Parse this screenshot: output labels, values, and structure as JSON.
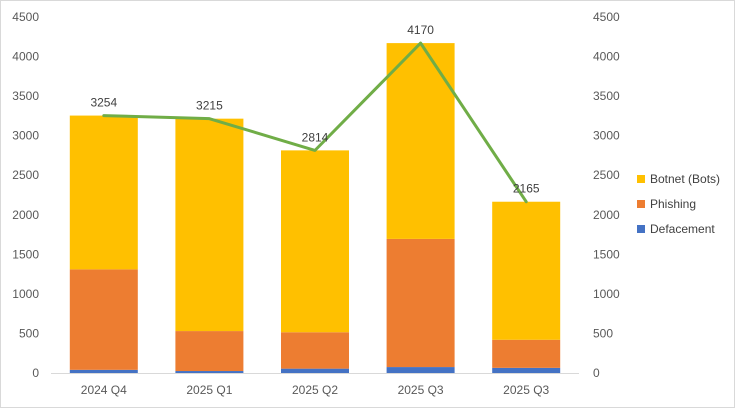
{
  "chart_data": {
    "type": "bar",
    "stacked": true,
    "categories": [
      "2024 Q4",
      "2025 Q1",
      "2025 Q2",
      "2025 Q3",
      "2025 Q3"
    ],
    "series": [
      {
        "name": "Defacement",
        "values": [
          40,
          25,
          55,
          75,
          65
        ],
        "color": "#4472c4"
      },
      {
        "name": "Phishing",
        "values": [
          1270,
          505,
          460,
          1620,
          355
        ],
        "color": "#ed7d31"
      },
      {
        "name": "Botnet (Bots)",
        "values": [
          1944,
          2685,
          2299,
          2475,
          1745
        ],
        "color": "#ffc000"
      }
    ],
    "line": {
      "values": [
        3254,
        3215,
        2814,
        4170,
        2165
      ],
      "color": "#70ad47"
    },
    "data_labels": [
      "3254",
      "3215",
      "2814",
      "4170",
      "2165"
    ],
    "ylim": [
      0,
      4500
    ],
    "y_ticks": [
      "0",
      "500",
      "1000",
      "1500",
      "2000",
      "2500",
      "3000",
      "3500",
      "4000",
      "4500"
    ],
    "secondary_ylim": [
      0,
      4500
    ],
    "legend": "right",
    "grid": false,
    "title": "",
    "xlabel": "",
    "ylabel": ""
  }
}
